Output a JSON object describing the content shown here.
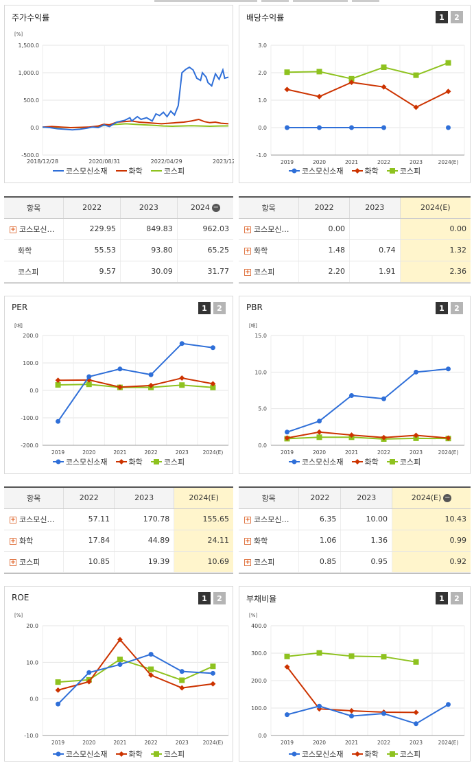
{
  "legend": {
    "company": "코스모신소재",
    "chem": "화학",
    "kospi": "코스피"
  },
  "colors": {
    "company": "#2f6fd8",
    "chem": "#cc3300",
    "kospi": "#8ec21f"
  },
  "panels": {
    "stock": {
      "title": "주가수익률",
      "unit": "[%]",
      "yticks": [
        "1,500.0",
        "1,000.0",
        "500.0",
        "0.0",
        "-500.0"
      ],
      "xticks": [
        "2018/12/28",
        "2020/08/31",
        "2022/04/29",
        "2023/12/28"
      ]
    },
    "dividend": {
      "title": "배당수익률",
      "btn1": "1",
      "btn2": "2"
    },
    "per": {
      "title": "PER",
      "unit": "[배]",
      "btn1": "1",
      "btn2": "2"
    },
    "pbr": {
      "title": "PBR",
      "unit": "[배]",
      "btn1": "1",
      "btn2": "2"
    },
    "roe": {
      "title": "ROE",
      "unit": "[%]",
      "btn1": "1",
      "btn2": "2"
    },
    "debt": {
      "title": "부채비율",
      "unit": "[%]",
      "btn1": "1",
      "btn2": "2"
    }
  },
  "tables": {
    "stock": {
      "headers": [
        "항목",
        "2022",
        "2023",
        "2024"
      ],
      "rows": [
        {
          "name": "코스모신…",
          "plus": true,
          "values": [
            "229.95",
            "849.83",
            "962.03"
          ]
        },
        {
          "name": "화학",
          "plus": false,
          "values": [
            "55.53",
            "93.80",
            "65.25"
          ]
        },
        {
          "name": "코스피",
          "plus": false,
          "values": [
            "9.57",
            "30.09",
            "31.77"
          ]
        }
      ]
    },
    "dividend": {
      "headers": [
        "항목",
        "2022",
        "2023",
        "2024(E)"
      ],
      "rows": [
        {
          "name": "코스모신…",
          "plus": true,
          "values": [
            "0.00",
            "",
            "0.00"
          ]
        },
        {
          "name": "화학",
          "plus": true,
          "values": [
            "1.48",
            "0.74",
            "1.32"
          ]
        },
        {
          "name": "코스피",
          "plus": true,
          "values": [
            "2.20",
            "1.91",
            "2.36"
          ]
        }
      ]
    },
    "per": {
      "headers": [
        "항목",
        "2022",
        "2023",
        "2024(E)"
      ],
      "rows": [
        {
          "name": "코스모신…",
          "plus": true,
          "values": [
            "57.11",
            "170.78",
            "155.65"
          ]
        },
        {
          "name": "화학",
          "plus": true,
          "values": [
            "17.84",
            "44.89",
            "24.11"
          ]
        },
        {
          "name": "코스피",
          "plus": true,
          "values": [
            "10.85",
            "19.39",
            "10.69"
          ]
        }
      ]
    },
    "pbr": {
      "headers": [
        "항목",
        "2022",
        "2023",
        "2024(E)"
      ],
      "rows": [
        {
          "name": "코스모신…",
          "plus": true,
          "values": [
            "6.35",
            "10.00",
            "10.43"
          ]
        },
        {
          "name": "화학",
          "plus": true,
          "values": [
            "1.06",
            "1.36",
            "0.99"
          ]
        },
        {
          "name": "코스피",
          "plus": true,
          "values": [
            "0.85",
            "0.95",
            "0.92"
          ]
        }
      ]
    }
  },
  "chart_data": [
    {
      "id": "stock",
      "type": "line",
      "title": "주가수익률",
      "ylabel": "[%]",
      "ylim": [
        -500,
        1500
      ],
      "xlim": [
        0,
        100
      ],
      "x_tick_labels": [
        "2018/12/28",
        "2020/08/31",
        "2022/04/29",
        "2023/12/28"
      ],
      "series": [
        {
          "name": "코스모신소재",
          "color": "#2f6fd8",
          "x": [
            0,
            4,
            8,
            12,
            16,
            20,
            24,
            27,
            30,
            33,
            36,
            40,
            44,
            47,
            48,
            51,
            53,
            56,
            59,
            61,
            63,
            65,
            67,
            69,
            71,
            73,
            75,
            77,
            79,
            81,
            83,
            85,
            86,
            88,
            89,
            91,
            93,
            95,
            97,
            98,
            100
          ],
          "y": [
            10,
            0,
            -20,
            -30,
            -40,
            -30,
            -10,
            10,
            0,
            50,
            20,
            100,
            130,
            180,
            120,
            200,
            150,
            180,
            120,
            250,
            220,
            280,
            200,
            300,
            230,
            400,
            1000,
            1060,
            1100,
            1050,
            900,
            860,
            1000,
            920,
            820,
            760,
            980,
            880,
            1050,
            900,
            920
          ]
        },
        {
          "name": "화학",
          "color": "#cc3300",
          "x": [
            0,
            5,
            10,
            15,
            20,
            25,
            30,
            33,
            36,
            40,
            44,
            48,
            52,
            56,
            60,
            64,
            68,
            72,
            76,
            80,
            84,
            87,
            90,
            93,
            96,
            100
          ],
          "y": [
            10,
            20,
            10,
            0,
            5,
            10,
            30,
            60,
            50,
            100,
            110,
            120,
            100,
            90,
            80,
            70,
            80,
            90,
            100,
            120,
            150,
            110,
            90,
            100,
            80,
            70
          ]
        },
        {
          "name": "코스피",
          "color": "#8ec21f",
          "x": [
            0,
            5,
            10,
            15,
            20,
            25,
            30,
            35,
            40,
            45,
            50,
            55,
            60,
            65,
            70,
            75,
            80,
            85,
            90,
            95,
            100
          ],
          "y": [
            5,
            10,
            5,
            0,
            0,
            5,
            20,
            50,
            60,
            70,
            60,
            50,
            40,
            30,
            25,
            30,
            35,
            30,
            25,
            30,
            32
          ]
        }
      ]
    },
    {
      "id": "dividend",
      "type": "line",
      "title": "배당수익률",
      "ylim": [
        -1,
        3
      ],
      "yticks": [
        "3.0",
        "2.0",
        "1.0",
        "0.0",
        "-1.0"
      ],
      "categories": [
        "2019",
        "2020",
        "2021",
        "2022",
        "2023",
        "2024(E)"
      ],
      "series": [
        {
          "name": "코스모신소재",
          "values": [
            0.0,
            0.0,
            0.0,
            0.0,
            null,
            0.0
          ]
        },
        {
          "name": "화학",
          "values": [
            1.39,
            1.13,
            1.65,
            1.48,
            0.74,
            1.32
          ]
        },
        {
          "name": "코스피",
          "values": [
            2.02,
            2.04,
            1.78,
            2.2,
            1.91,
            2.36
          ]
        }
      ]
    },
    {
      "id": "per",
      "type": "line",
      "title": "PER",
      "ylabel": "[배]",
      "ylim": [
        -200,
        200
      ],
      "yticks": [
        "200.0",
        "100.0",
        "0.0",
        "-100.0",
        "-200.0"
      ],
      "categories": [
        "2019",
        "2020",
        "2021",
        "2022",
        "2023",
        "2024(E)"
      ],
      "series": [
        {
          "name": "코스모신소재",
          "values": [
            -113,
            50,
            78,
            57.11,
            170.78,
            155.65
          ]
        },
        {
          "name": "화학",
          "values": [
            37,
            38,
            12,
            17.84,
            44.89,
            24.11
          ]
        },
        {
          "name": "코스피",
          "values": [
            20,
            22,
            11,
            10.85,
            19.39,
            10.69
          ]
        }
      ]
    },
    {
      "id": "pbr",
      "type": "line",
      "title": "PBR",
      "ylabel": "[배]",
      "ylim": [
        0,
        15
      ],
      "yticks": [
        "15.0",
        "10.0",
        "5.0",
        "0.0"
      ],
      "categories": [
        "2019",
        "2020",
        "2021",
        "2022",
        "2023",
        "2024(E)"
      ],
      "series": [
        {
          "name": "코스모신소재",
          "values": [
            1.8,
            3.3,
            6.8,
            6.35,
            10.0,
            10.43
          ]
        },
        {
          "name": "화학",
          "values": [
            1.0,
            1.8,
            1.4,
            1.06,
            1.36,
            0.99
          ]
        },
        {
          "name": "코스피",
          "values": [
            0.9,
            1.1,
            1.1,
            0.85,
            0.95,
            0.92
          ]
        }
      ]
    },
    {
      "id": "roe",
      "type": "line",
      "title": "ROE",
      "ylabel": "[%]",
      "ylim": [
        -10,
        20
      ],
      "yticks": [
        "20.0",
        "10.0",
        "0.0",
        "-10.0"
      ],
      "categories": [
        "2019",
        "2020",
        "2021",
        "2022",
        "2023",
        "2024(E)"
      ],
      "series": [
        {
          "name": "코스모신소재",
          "values": [
            -1.4,
            7.2,
            9.4,
            12.2,
            7.5,
            7.0
          ]
        },
        {
          "name": "화학",
          "values": [
            2.4,
            4.7,
            16.2,
            6.5,
            3.0,
            4.1
          ]
        },
        {
          "name": "코스피",
          "values": [
            4.6,
            5.2,
            10.8,
            8.1,
            5.1,
            8.9
          ]
        }
      ]
    },
    {
      "id": "debt",
      "type": "line",
      "title": "부채비율",
      "ylabel": "[%]",
      "ylim": [
        0,
        400
      ],
      "yticks": [
        "400.0",
        "300.0",
        "200.0",
        "100.0",
        "0.0"
      ],
      "categories": [
        "2019",
        "2020",
        "2021",
        "2022",
        "2023",
        "2024(E)"
      ],
      "series": [
        {
          "name": "코스모신소재",
          "values": [
            76,
            107,
            71,
            80,
            43,
            113
          ]
        },
        {
          "name": "화학",
          "values": [
            250,
            97,
            90,
            85,
            84,
            null
          ]
        },
        {
          "name": "코스피",
          "values": [
            288,
            301,
            289,
            287,
            268,
            null
          ]
        }
      ]
    }
  ]
}
